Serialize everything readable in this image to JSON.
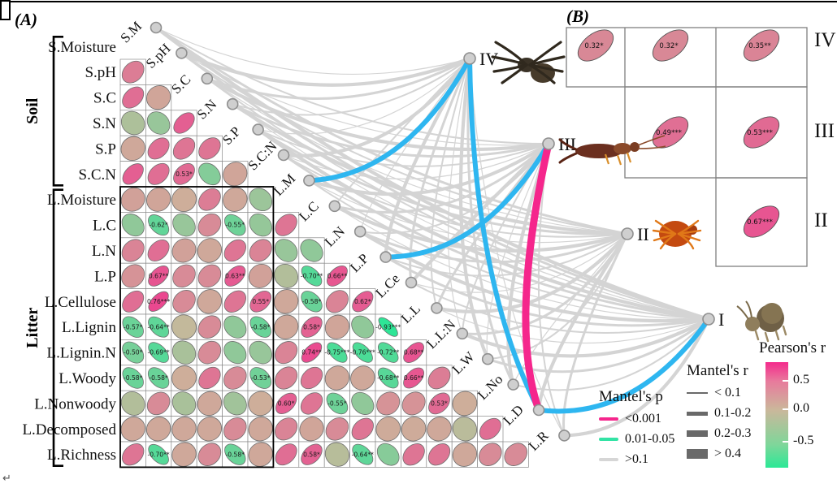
{
  "title_a": "(A)",
  "title_b": "(B)",
  "groups": [
    {
      "label": "Soil",
      "from": 0,
      "to": 5
    },
    {
      "label": "Litter",
      "from": 6,
      "to": 16
    }
  ],
  "variables": [
    {
      "name": "S.Moisture",
      "short": "S.M"
    },
    {
      "name": "S.pH",
      "short": "S.pH"
    },
    {
      "name": "S.C",
      "short": "S.C"
    },
    {
      "name": "S.N",
      "short": "S.N"
    },
    {
      "name": "S.P",
      "short": "S.P"
    },
    {
      "name": "S.C.N",
      "short": "S.C:N"
    },
    {
      "name": "L.Moisture",
      "short": "L.M"
    },
    {
      "name": "L.C",
      "short": "L.C"
    },
    {
      "name": "L.N",
      "short": "L.N"
    },
    {
      "name": "L.P",
      "short": "L.P"
    },
    {
      "name": "L.Cellulose",
      "short": "L.Ce"
    },
    {
      "name": "L.Lignin",
      "short": "L.L"
    },
    {
      "name": "L.Lignin.N",
      "short": "L.L:N"
    },
    {
      "name": "L.Woody",
      "short": "L.W"
    },
    {
      "name": "L.Nonwoody",
      "short": "L.No"
    },
    {
      "name": "L.Decomposed",
      "short": "L.D"
    },
    {
      "name": "L.Richness",
      "short": "L.R"
    }
  ],
  "chart_data": {
    "type": "correlation-matrix-with-mantel-network",
    "matrix_rows": [
      {
        "row": "S.pH",
        "r": [
          0.4
        ]
      },
      {
        "row": "S.C",
        "r": [
          0.5,
          0.12
        ]
      },
      {
        "row": "S.N",
        "r": [
          -0.18,
          -0.3,
          0.6
        ]
      },
      {
        "row": "S.P",
        "r": [
          0.1,
          0.5,
          0.45,
          0.45
        ]
      },
      {
        "row": "S.C.N",
        "r": [
          0.6,
          0.5,
          0.53,
          -0.42,
          0.12
        ]
      },
      {
        "row": "L.Moisture",
        "r": [
          0.15,
          0.12,
          0.06,
          0.4,
          0.1,
          -0.28
        ]
      },
      {
        "row": "L.C",
        "r": [
          -0.35,
          -0.62,
          -0.3,
          0.3,
          -0.55,
          -0.32,
          0.45
        ]
      },
      {
        "row": "L.N",
        "r": [
          0.35,
          0.5,
          0.15,
          0.1,
          0.45,
          0.35,
          -0.3,
          -0.35
        ]
      },
      {
        "row": "L.P",
        "r": [
          0.25,
          0.67,
          0.3,
          0.3,
          0.63,
          0.15,
          -0.15,
          -0.7,
          0.66
        ]
      },
      {
        "row": "L.Cellulose",
        "r": [
          0.5,
          0.76,
          0.3,
          0.1,
          0.45,
          0.55,
          0.1,
          -0.58,
          0.35,
          0.62
        ]
      },
      {
        "row": "L.Lignin",
        "r": [
          -0.57,
          -0.64,
          -0.05,
          0.3,
          -0.35,
          -0.58,
          0.1,
          0.58,
          0.12,
          -0.35,
          -0.93
        ]
      },
      {
        "row": "L.Lignin.N",
        "r": [
          -0.5,
          -0.69,
          -0.2,
          0.3,
          -0.35,
          -0.3,
          0.35,
          0.74,
          -0.75,
          -0.76,
          -0.72,
          0.68
        ]
      },
      {
        "row": "L.Woody",
        "r": [
          -0.58,
          -0.58,
          0.06,
          0.45,
          0.3,
          -0.53,
          0.35,
          0.45,
          0.1,
          0.1,
          -0.68,
          0.66,
          0.4
        ]
      },
      {
        "row": "L.Nonwoody",
        "r": [
          -0.15,
          0.3,
          -0.2,
          0.1,
          -0.25,
          0.06,
          0.6,
          0.45,
          -0.55,
          -0.35,
          0.25,
          0.25,
          0.53,
          0.06
        ]
      },
      {
        "row": "L.Decomposed",
        "r": [
          0.1,
          0.1,
          0.1,
          0.1,
          0.3,
          0.1,
          0.35,
          0.12,
          0.3,
          0.45,
          0.08,
          0.08,
          0.1,
          -0.1,
          0.5
        ]
      },
      {
        "row": "L.Richness",
        "r": [
          0.45,
          -0.7,
          0.1,
          0.3,
          -0.58,
          0.1,
          0.5,
          0.58,
          -0.12,
          -0.64,
          -0.4,
          0.45,
          0.45,
          0.1,
          0.3,
          0.3
        ]
      }
    ],
    "cell_labels": [
      {
        "row": "S.C.N",
        "col": "S.C",
        "text": "0.53*"
      },
      {
        "row": "L.C",
        "col": "S.pH",
        "text": "-0.62*"
      },
      {
        "row": "L.C",
        "col": "S.P",
        "text": "-0.55*"
      },
      {
        "row": "L.P",
        "col": "S.pH",
        "text": "0.67**"
      },
      {
        "row": "L.P",
        "col": "S.P",
        "text": "0.63**"
      },
      {
        "row": "L.P",
        "col": "L.C",
        "text": "-0.70**"
      },
      {
        "row": "L.P",
        "col": "L.N",
        "text": "0.66**"
      },
      {
        "row": "L.Cellulose",
        "col": "S.pH",
        "text": "0.76***"
      },
      {
        "row": "L.Cellulose",
        "col": "S.C.N",
        "text": "0.55*"
      },
      {
        "row": "L.Cellulose",
        "col": "L.C",
        "text": "-0.58*"
      },
      {
        "row": "L.Cellulose",
        "col": "L.P",
        "text": "0.62*"
      },
      {
        "row": "L.Lignin",
        "col": "S.Moisture",
        "text": "-0.57*"
      },
      {
        "row": "L.Lignin",
        "col": "S.pH",
        "text": "-0.64**"
      },
      {
        "row": "L.Lignin",
        "col": "S.C.N",
        "text": "-0.58*"
      },
      {
        "row": "L.Lignin",
        "col": "L.C",
        "text": "0.58*"
      },
      {
        "row": "L.Lignin",
        "col": "L.Cellulose",
        "text": "-0.93***"
      },
      {
        "row": "L.Lignin.N",
        "col": "S.Moisture",
        "text": "-0.50*"
      },
      {
        "row": "L.Lignin.N",
        "col": "S.pH",
        "text": "-0.69**"
      },
      {
        "row": "L.Lignin.N",
        "col": "L.C",
        "text": "0.74**"
      },
      {
        "row": "L.Lignin.N",
        "col": "L.N",
        "text": "-0.75***"
      },
      {
        "row": "L.Lignin.N",
        "col": "L.P",
        "text": "-0.76***"
      },
      {
        "row": "L.Lignin.N",
        "col": "L.Cellulose",
        "text": "-0.72**"
      },
      {
        "row": "L.Lignin.N",
        "col": "L.Lignin",
        "text": "0.68**"
      },
      {
        "row": "L.Woody",
        "col": "S.Moisture",
        "text": "-0.58*"
      },
      {
        "row": "L.Woody",
        "col": "S.pH",
        "text": "-0.58*"
      },
      {
        "row": "L.Woody",
        "col": "S.C.N",
        "text": "-0.53*"
      },
      {
        "row": "L.Woody",
        "col": "L.Cellulose",
        "text": "-0.68**"
      },
      {
        "row": "L.Woody",
        "col": "L.Lignin",
        "text": "0.66**"
      },
      {
        "row": "L.Nonwoody",
        "col": "L.Moisture",
        "text": "0.60*"
      },
      {
        "row": "L.Nonwoody",
        "col": "L.N",
        "text": "-0.55*"
      },
      {
        "row": "L.Nonwoody",
        "col": "L.Lignin.N",
        "text": "0.53*"
      },
      {
        "row": "L.Richness",
        "col": "S.pH",
        "text": "-0.70**"
      },
      {
        "row": "L.Richness",
        "col": "S.P",
        "text": "-0.58*"
      },
      {
        "row": "L.Richness",
        "col": "L.C",
        "text": "0.58*"
      },
      {
        "row": "L.Richness",
        "col": "L.P",
        "text": "-0.64**"
      }
    ],
    "fauna": [
      {
        "id": "IV",
        "animal": "spider"
      },
      {
        "id": "III",
        "animal": "earwig"
      },
      {
        "id": "II",
        "animal": "mite"
      },
      {
        "id": "I",
        "animal": "springtail"
      }
    ],
    "mantel_edges": [
      {
        "from": "L.Moisture",
        "to": "IV",
        "p": "0.01-0.05",
        "r": "0.2-0.3"
      },
      {
        "from": "L.Decomposed",
        "to": "IV",
        "p": "0.01-0.05",
        "r": "0.2-0.3"
      },
      {
        "from": "L.P",
        "to": "III",
        "p": "0.01-0.05",
        "r": "0.2-0.3"
      },
      {
        "from": "L.Decomposed",
        "to": "III",
        "p": "<0.001",
        "r": "> 0.4"
      },
      {
        "from": "L.Decomposed",
        "to": "I",
        "p": "0.01-0.05",
        "r": "0.2-0.3"
      }
    ],
    "panel_b": {
      "rows": [
        {
          "name": "IV",
          "cells": [
            "0.32*",
            "0.32*",
            "0.35**"
          ]
        },
        {
          "name": "III",
          "cells": [
            "0.49***",
            "0.53***"
          ]
        },
        {
          "name": "II",
          "cells": [
            "0.67***"
          ]
        }
      ]
    }
  },
  "legend_p": {
    "title": "Mantel's p",
    "items": [
      {
        "label": "<0.001",
        "color": "#f5268c"
      },
      {
        "label": "0.01-0.05",
        "color": "#33e3a5"
      },
      {
        "label": ">0.1",
        "color": "#d6d6d6"
      }
    ]
  },
  "legend_r": {
    "title": "Mantel's r",
    "items": [
      {
        "label": "< 0.1"
      },
      {
        "label": "0.1-0.2"
      },
      {
        "label": "0.2-0.3"
      },
      {
        "label": "> 0.4"
      }
    ]
  },
  "legend_pearson": {
    "title": "Pearson's r",
    "ticks": [
      "0.5",
      "0.0",
      "-0.5"
    ]
  },
  "colors": {
    "edge_sig": "#2eb6f0",
    "edge_strong": "#f5268c",
    "edge_gray": "#d4d4d4",
    "ellipse_pos": "#f5258c",
    "ellipse_zero": "#cbb79b",
    "ellipse_neg": "#22e896",
    "node_fill": "#cfcfcf",
    "node_stroke": "#8f8f8f"
  },
  "return_mark": "↵"
}
